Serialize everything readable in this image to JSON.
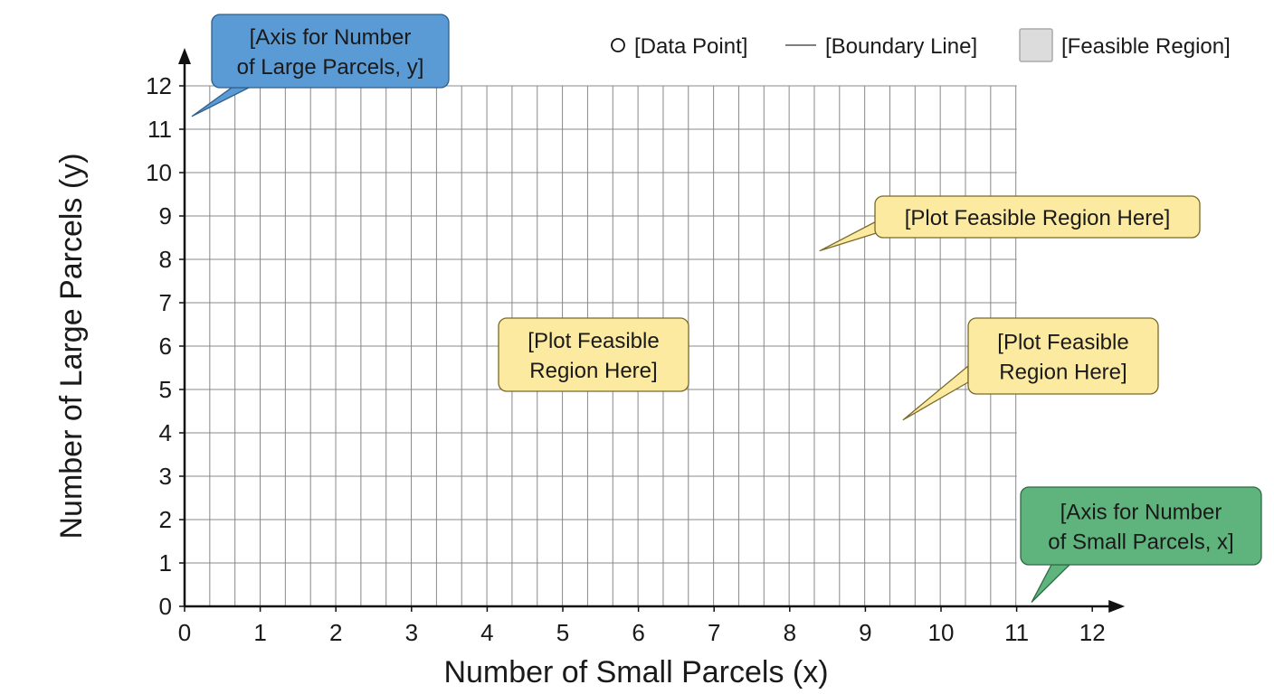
{
  "chart_data": {
    "type": "scatter",
    "title": "",
    "xlabel": "Number of Small Parcels (x)",
    "ylabel": "Number of Large Parcels (y)",
    "xlim": [
      0,
      12
    ],
    "ylim": [
      0,
      12
    ],
    "grid_xlim": [
      0,
      11
    ],
    "grid_ylim": [
      0,
      12
    ],
    "x_ticks": [
      "0",
      "1",
      "2",
      "3",
      "4",
      "5",
      "6",
      "7",
      "8",
      "9",
      "10",
      "11",
      "12"
    ],
    "y_ticks": [
      "0",
      "1",
      "2",
      "3",
      "4",
      "5",
      "6",
      "7",
      "8",
      "9",
      "10",
      "11",
      "12"
    ],
    "grid": true,
    "minor_grid_step": 0.333,
    "legend_position": "top-right",
    "legend": [
      {
        "label": "[Data Point]",
        "marker": "circle"
      },
      {
        "label": "[Boundary Line]",
        "marker": "line"
      },
      {
        "label": "[Feasible Region]",
        "marker": "square"
      }
    ],
    "series": [],
    "annotations": [
      {
        "name": "y-axis-callout",
        "lines": [
          "[Axis for Number",
          "of Large Parcels, y]"
        ],
        "color": "#5b9bd5",
        "target": [
          0.1,
          11.3
        ]
      },
      {
        "name": "feasible-callout-top",
        "lines": [
          "[Plot Feasible Region Here]"
        ],
        "color": "#fbeaa0",
        "target": [
          8.4,
          8.2
        ]
      },
      {
        "name": "feasible-callout-middle",
        "lines": [
          "[Plot Feasible",
          "Region Here]"
        ],
        "color": "#fbeaa0",
        "target": null
      },
      {
        "name": "feasible-callout-right",
        "lines": [
          "[Plot Feasible",
          "Region Here]"
        ],
        "color": "#fbeaa0",
        "target": [
          9.5,
          4.3
        ]
      },
      {
        "name": "x-axis-callout",
        "lines": [
          "[Axis for Number",
          "of Small Parcels, x]"
        ],
        "color": "#5fb37d",
        "target": [
          11.2,
          0.1
        ]
      }
    ]
  },
  "colors": {
    "axis": "#111111",
    "grid": "#888888",
    "legend_square_fill": "#dcdcdc",
    "legend_square_stroke": "#aaaaaa"
  }
}
